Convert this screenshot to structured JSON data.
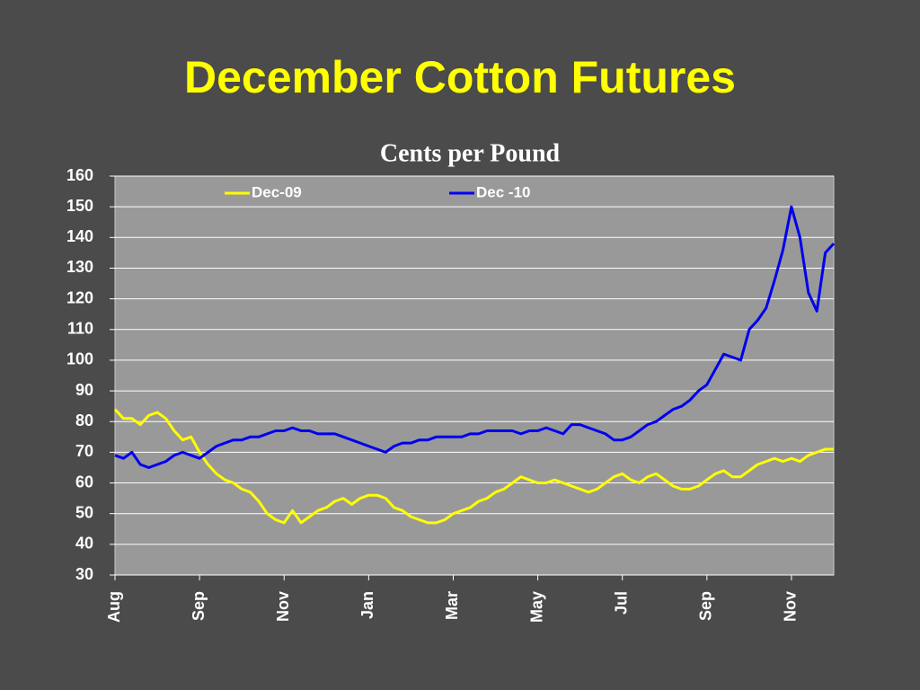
{
  "chart_data": {
    "type": "line",
    "title": "December Cotton Futures",
    "subtitle": "Cents per Pound",
    "categories": [
      "Aug",
      null,
      null,
      null,
      null,
      null,
      null,
      null,
      null,
      null,
      "Sep",
      null,
      null,
      null,
      null,
      null,
      null,
      null,
      null,
      null,
      "Nov",
      null,
      null,
      null,
      null,
      null,
      null,
      null,
      null,
      null,
      "Jan",
      null,
      null,
      null,
      null,
      null,
      null,
      null,
      null,
      null,
      "Mar",
      null,
      null,
      null,
      null,
      null,
      null,
      null,
      null,
      null,
      "May",
      null,
      null,
      null,
      null,
      null,
      null,
      null,
      null,
      null,
      "Jul",
      null,
      null,
      null,
      null,
      null,
      null,
      null,
      null,
      null,
      "Sep",
      null,
      null,
      null,
      null,
      null,
      null,
      null,
      null,
      null,
      "Nov",
      null,
      null,
      null,
      null,
      null
    ],
    "series": [
      {
        "name": "Dec-09",
        "color": "#ffff00",
        "values": [
          84,
          81,
          81,
          79,
          82,
          83,
          81,
          77,
          74,
          75,
          70,
          66,
          63,
          61,
          60,
          58,
          57,
          54,
          50,
          48,
          47,
          51,
          47,
          49,
          51,
          52,
          54,
          55,
          53,
          55,
          56,
          56,
          55,
          52,
          51,
          49,
          48,
          47,
          47,
          48,
          50,
          51,
          52,
          54,
          55,
          57,
          58,
          60,
          62,
          61,
          60,
          60,
          61,
          60,
          59,
          58,
          57,
          58,
          60,
          62,
          63,
          61,
          60,
          62,
          63,
          61,
          59,
          58,
          58,
          59,
          61,
          63,
          64,
          62,
          62,
          64,
          66,
          67,
          68,
          67,
          68,
          67,
          69,
          70,
          71,
          71
        ]
      },
      {
        "name": "Dec -10",
        "color": "#0000ee",
        "values": [
          69,
          68,
          70,
          66,
          65,
          66,
          67,
          69,
          70,
          69,
          68,
          70,
          72,
          73,
          74,
          74,
          75,
          75,
          76,
          77,
          77,
          78,
          77,
          77,
          76,
          76,
          76,
          75,
          74,
          73,
          72,
          71,
          70,
          72,
          73,
          73,
          74,
          74,
          75,
          75,
          75,
          75,
          76,
          76,
          77,
          77,
          77,
          77,
          76,
          77,
          77,
          78,
          77,
          76,
          79,
          79,
          78,
          77,
          76,
          74,
          74,
          75,
          77,
          79,
          80,
          82,
          84,
          85,
          87,
          90,
          92,
          97,
          102,
          101,
          100,
          110,
          113,
          117,
          126,
          136,
          150,
          140,
          122,
          116,
          135,
          138
        ]
      }
    ],
    "ylim": [
      30,
      160
    ],
    "yticks": [
      30,
      40,
      50,
      60,
      70,
      80,
      90,
      100,
      110,
      120,
      130,
      140,
      150,
      160
    ],
    "grid": true,
    "legend": "top"
  }
}
